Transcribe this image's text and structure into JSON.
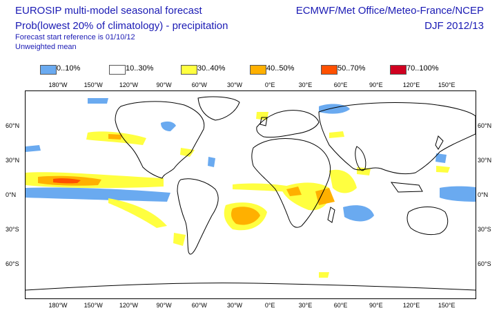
{
  "header": {
    "title_line1": "EUROSIP multi-model seasonal forecast",
    "title_line2": "Prob(lowest 20% of climatology) - precipitation",
    "forecast_start": "Forecast start reference is 01/10/12",
    "mean_type": "Unweighted mean",
    "centres": "ECMWF/Met Office/Meteo-France/NCEP",
    "season": "DJF 2012/13"
  },
  "legend": [
    {
      "label": "0..10%",
      "color": "#6aaaf0"
    },
    {
      "label": "10..30%",
      "color": "#ffffff"
    },
    {
      "label": "30..40%",
      "color": "#ffff40"
    },
    {
      "label": "40..50%",
      "color": "#ffb000"
    },
    {
      "label": "50..70%",
      "color": "#ff5000"
    },
    {
      "label": "70..100%",
      "color": "#d00020"
    }
  ],
  "axes": {
    "lon_labels": [
      "180°W",
      "150°W",
      "120°W",
      "90°W",
      "60°W",
      "30°W",
      "0°E",
      "30°E",
      "60°E",
      "90°E",
      "120°E",
      "150°E"
    ],
    "lat_labels": [
      "60°N",
      "30°N",
      "0°N",
      "30°S",
      "60°S"
    ],
    "lat_values": [
      60,
      30,
      0,
      -30,
      -60
    ],
    "lon_values": [
      -180,
      -150,
      -120,
      -90,
      -60,
      -30,
      0,
      30,
      60,
      90,
      120,
      150
    ]
  }
}
